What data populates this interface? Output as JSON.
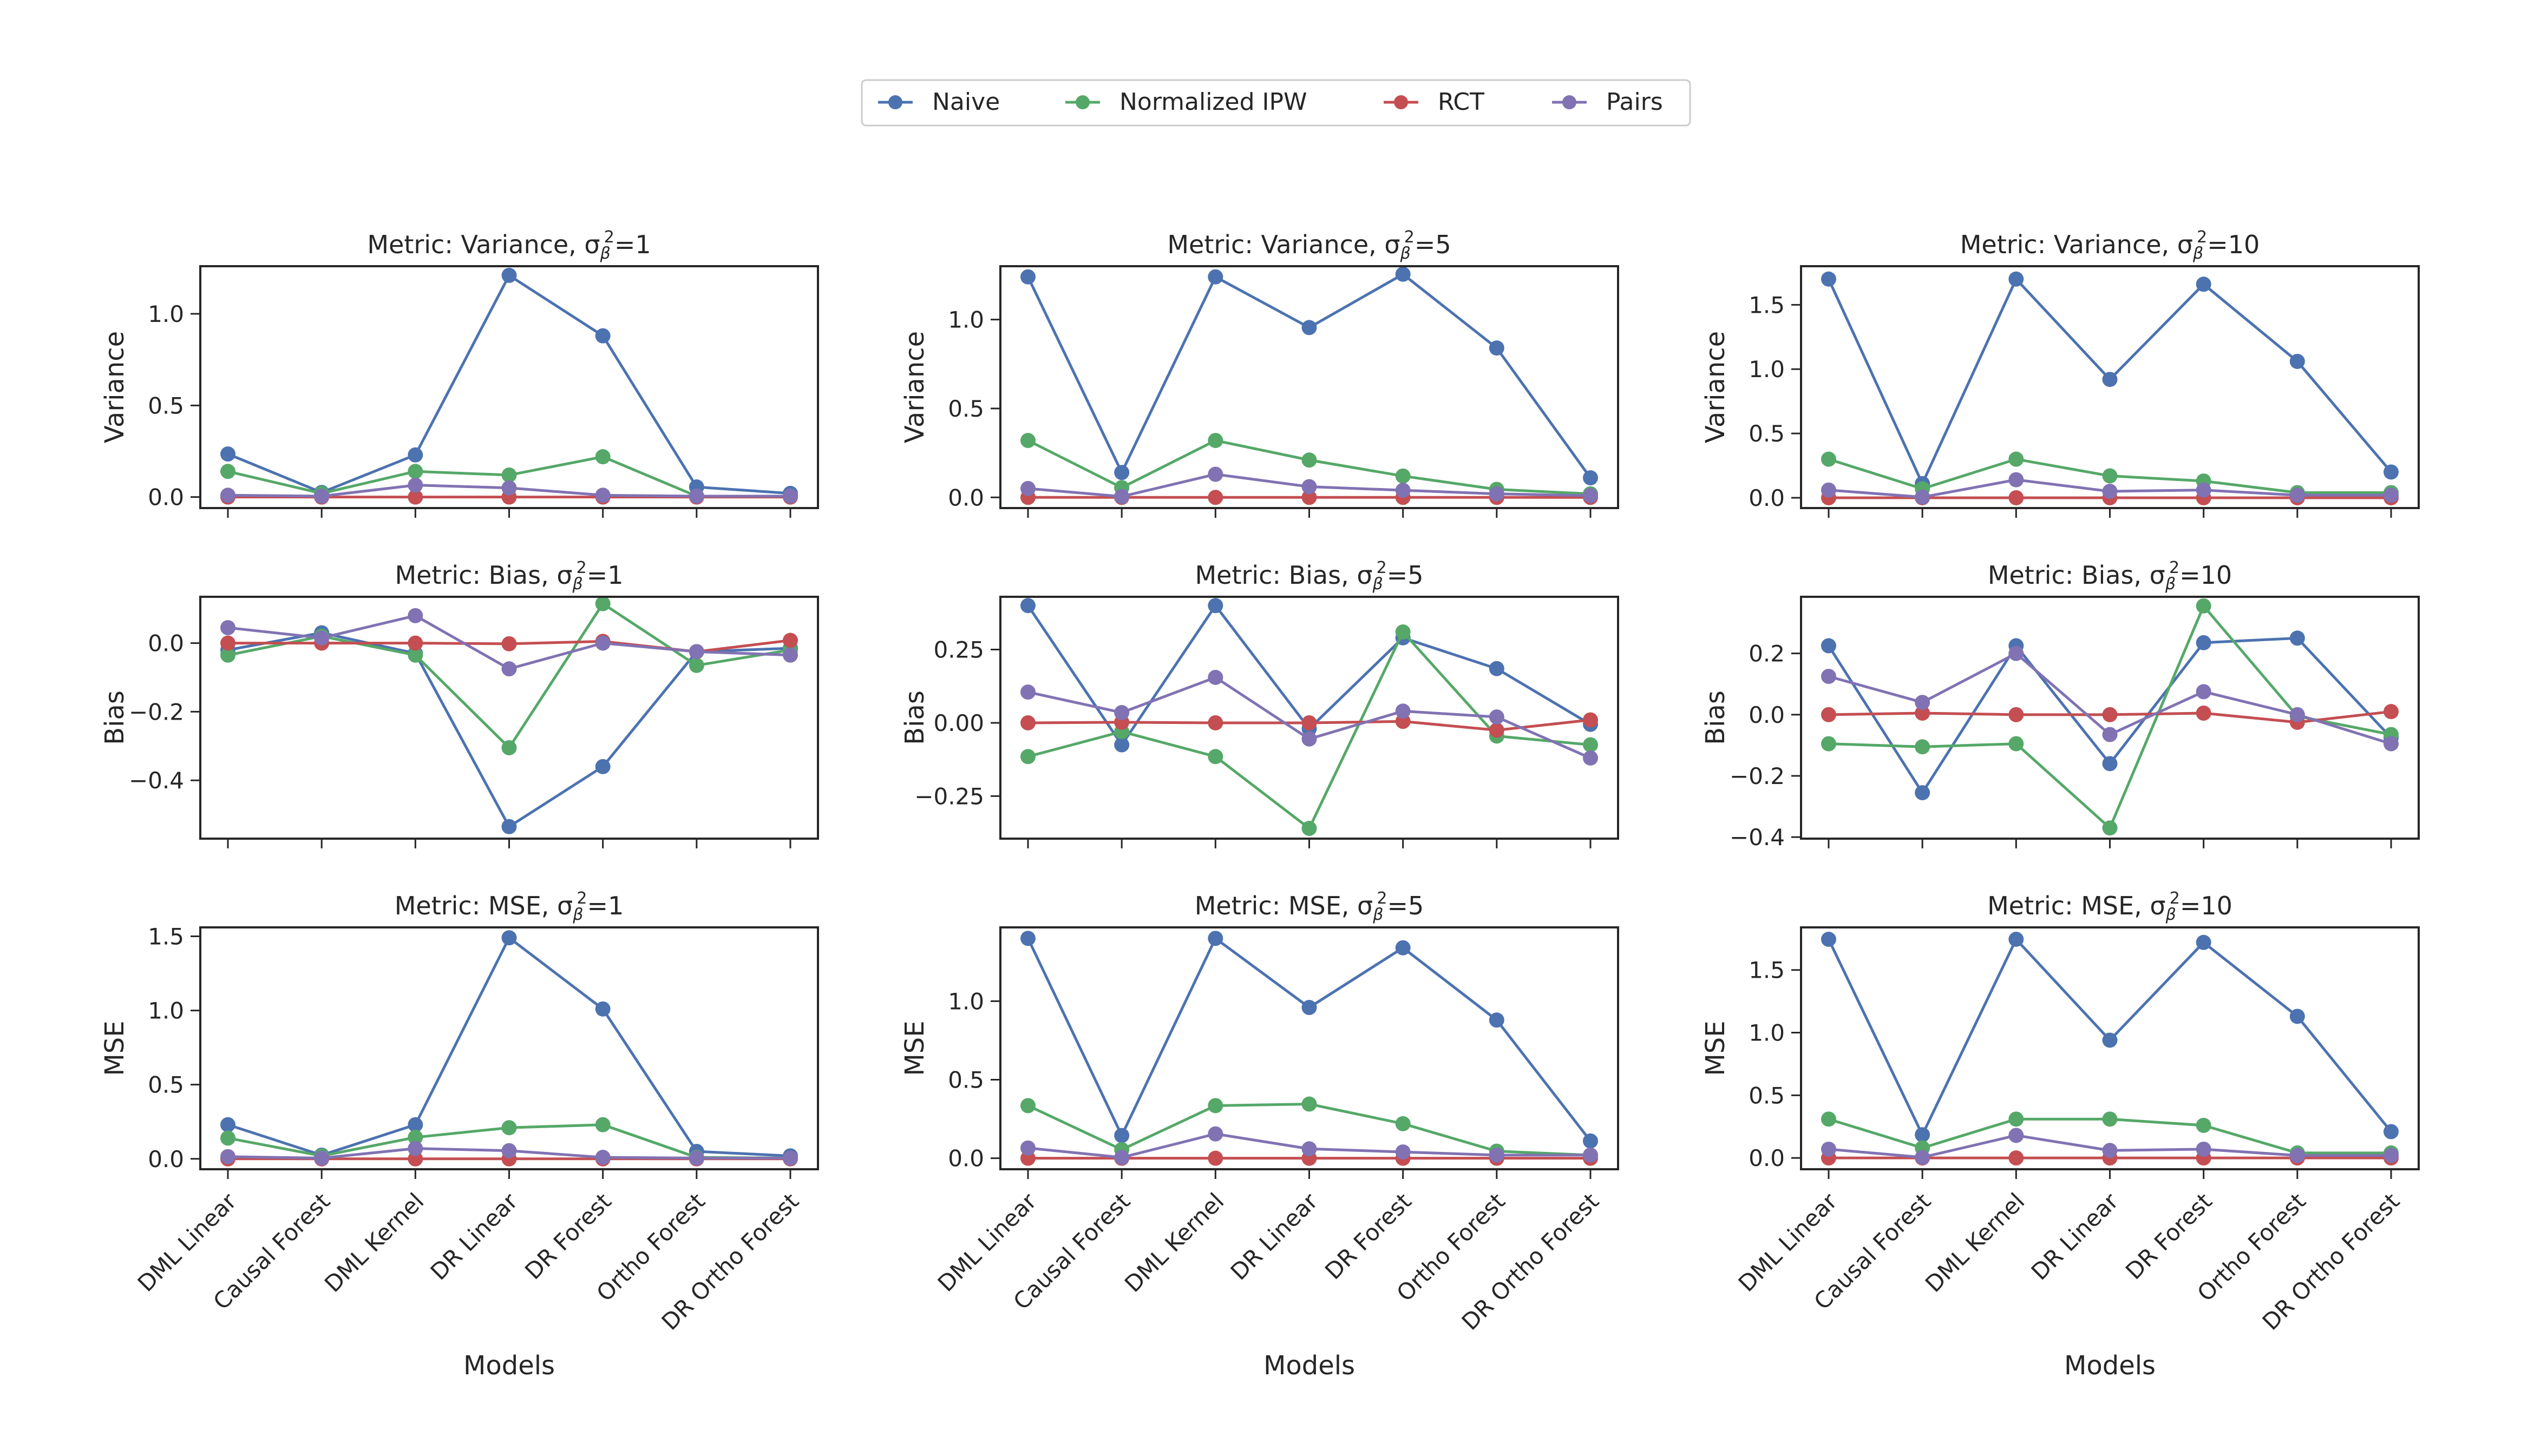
{
  "chart_data": {
    "type": "line",
    "grid": false,
    "legend_placement": "top-center",
    "xlabel": "Models",
    "categories": [
      "DML Linear",
      "Causal Forest",
      "DML Kernel",
      "DR Linear",
      "DR Forest",
      "Ortho Forest",
      "DR Ortho Forest"
    ],
    "series_meta": [
      {
        "name": "Naive",
        "color": "#4c72b0"
      },
      {
        "name": "Normalized IPW",
        "color": "#55a868"
      },
      {
        "name": "RCT",
        "color": "#c44e52"
      },
      {
        "name": "Pairs",
        "color": "#8172b3"
      }
    ],
    "panels": [
      {
        "metric": "Variance",
        "title_prefix": "Metric: Variance, ",
        "sigma_label": "=1",
        "ylabel": "Variance",
        "ylim": [
          -0.06,
          1.26
        ],
        "yticks": [
          0.0,
          0.5,
          1.0
        ],
        "ytick_labels": [
          "0.0",
          "0.5",
          "1.0"
        ],
        "series": [
          {
            "name": "Naive",
            "values": [
              0.235,
              0.025,
              0.23,
              1.21,
              0.88,
              0.055,
              0.02
            ]
          },
          {
            "name": "Normalized IPW",
            "values": [
              0.14,
              0.02,
              0.14,
              0.12,
              0.22,
              0.005,
              0.005
            ]
          },
          {
            "name": "RCT",
            "values": [
              0.0,
              0.0,
              0.0,
              0.0,
              0.0,
              0.0,
              0.0
            ]
          },
          {
            "name": "Pairs",
            "values": [
              0.01,
              0.005,
              0.065,
              0.05,
              0.01,
              0.005,
              0.005
            ]
          }
        ]
      },
      {
        "metric": "Variance",
        "title_prefix": "Metric: Variance, ",
        "sigma_label": "=5",
        "ylabel": "Variance",
        "ylim": [
          -0.06,
          1.3
        ],
        "yticks": [
          0.0,
          0.5,
          1.0
        ],
        "ytick_labels": [
          "0.0",
          "0.5",
          "1.0"
        ],
        "series": [
          {
            "name": "Naive",
            "values": [
              1.24,
              0.14,
              1.24,
              0.955,
              1.255,
              0.84,
              0.11
            ]
          },
          {
            "name": "Normalized IPW",
            "values": [
              0.32,
              0.055,
              0.32,
              0.21,
              0.12,
              0.045,
              0.02
            ]
          },
          {
            "name": "RCT",
            "values": [
              0.0,
              0.0,
              0.0,
              0.0,
              0.0,
              0.0,
              0.0
            ]
          },
          {
            "name": "Pairs",
            "values": [
              0.05,
              0.005,
              0.13,
              0.06,
              0.04,
              0.02,
              0.01
            ]
          }
        ]
      },
      {
        "metric": "Variance",
        "title_prefix": "Metric: Variance, ",
        "sigma_label": "=10",
        "ylabel": "Variance",
        "ylim": [
          -0.08,
          1.8
        ],
        "yticks": [
          0.0,
          0.5,
          1.0,
          1.5
        ],
        "ytick_labels": [
          "0.0",
          "0.5",
          "1.0",
          "1.5"
        ],
        "series": [
          {
            "name": "Naive",
            "values": [
              1.7,
              0.11,
              1.7,
              0.92,
              1.66,
              1.06,
              0.2
            ]
          },
          {
            "name": "Normalized IPW",
            "values": [
              0.3,
              0.07,
              0.3,
              0.17,
              0.13,
              0.04,
              0.04
            ]
          },
          {
            "name": "RCT",
            "values": [
              0.0,
              0.0,
              0.0,
              0.0,
              0.0,
              0.0,
              0.0
            ]
          },
          {
            "name": "Pairs",
            "values": [
              0.06,
              0.005,
              0.14,
              0.05,
              0.06,
              0.02,
              0.02
            ]
          }
        ]
      },
      {
        "metric": "Bias",
        "title_prefix": "Metric: Bias, ",
        "sigma_label": "=1",
        "ylabel": "Bias",
        "ylim": [
          -0.57,
          0.135
        ],
        "yticks": [
          -0.4,
          -0.2,
          0.0
        ],
        "ytick_labels": [
          "−0.4",
          "−0.2",
          "0.0"
        ],
        "series": [
          {
            "name": "Naive",
            "values": [
              -0.02,
              0.03,
              -0.03,
              -0.535,
              -0.36,
              -0.025,
              -0.015
            ]
          },
          {
            "name": "Normalized IPW",
            "values": [
              -0.035,
              0.02,
              -0.035,
              -0.305,
              0.115,
              -0.065,
              -0.02
            ]
          },
          {
            "name": "RCT",
            "values": [
              0.0,
              0.0,
              0.0,
              -0.002,
              0.005,
              -0.025,
              0.008
            ]
          },
          {
            "name": "Pairs",
            "values": [
              0.045,
              0.015,
              0.08,
              -0.075,
              0.0,
              -0.025,
              -0.035
            ]
          }
        ]
      },
      {
        "metric": "Bias",
        "title_prefix": "Metric: Bias, ",
        "sigma_label": "=5",
        "ylabel": "Bias",
        "ylim": [
          -0.395,
          0.43
        ],
        "yticks": [
          -0.25,
          0.0,
          0.25
        ],
        "ytick_labels": [
          "−0.25",
          "0.00",
          "0.25"
        ],
        "series": [
          {
            "name": "Naive",
            "values": [
              0.4,
              -0.075,
              0.4,
              -0.02,
              0.29,
              0.185,
              -0.005
            ]
          },
          {
            "name": "Normalized IPW",
            "values": [
              -0.115,
              -0.03,
              -0.115,
              -0.36,
              0.31,
              -0.045,
              -0.075
            ]
          },
          {
            "name": "RCT",
            "values": [
              0.0,
              0.002,
              0.0,
              0.0,
              0.005,
              -0.025,
              0.01
            ]
          },
          {
            "name": "Pairs",
            "values": [
              0.105,
              0.035,
              0.155,
              -0.055,
              0.04,
              0.02,
              -0.12
            ]
          }
        ]
      },
      {
        "metric": "Bias",
        "title_prefix": "Metric: Bias, ",
        "sigma_label": "=10",
        "ylabel": "Bias",
        "ylim": [
          -0.405,
          0.385
        ],
        "yticks": [
          -0.4,
          -0.2,
          0.0,
          0.2
        ],
        "ytick_labels": [
          "−0.4",
          "−0.2",
          "0.0",
          "0.2"
        ],
        "series": [
          {
            "name": "Naive",
            "values": [
              0.225,
              -0.255,
              0.225,
              -0.16,
              0.235,
              0.25,
              -0.075
            ]
          },
          {
            "name": "Normalized IPW",
            "values": [
              -0.095,
              -0.105,
              -0.095,
              -0.37,
              0.355,
              -0.005,
              -0.065
            ]
          },
          {
            "name": "RCT",
            "values": [
              0.0,
              0.005,
              0.0,
              0.0,
              0.005,
              -0.025,
              0.01
            ]
          },
          {
            "name": "Pairs",
            "values": [
              0.125,
              0.04,
              0.2,
              -0.065,
              0.075,
              0.0,
              -0.095
            ]
          }
        ]
      },
      {
        "metric": "MSE",
        "title_prefix": "Metric: MSE, ",
        "sigma_label": "=1",
        "ylabel": "MSE",
        "ylim": [
          -0.07,
          1.56
        ],
        "yticks": [
          0.0,
          0.5,
          1.0,
          1.5
        ],
        "ytick_labels": [
          "0.0",
          "0.5",
          "1.0",
          "1.5"
        ],
        "series": [
          {
            "name": "Naive",
            "values": [
              0.23,
              0.025,
              0.23,
              1.49,
              1.01,
              0.05,
              0.02
            ]
          },
          {
            "name": "Normalized IPW",
            "values": [
              0.14,
              0.02,
              0.145,
              0.21,
              0.23,
              0.01,
              0.005
            ]
          },
          {
            "name": "RCT",
            "values": [
              0.0,
              0.0,
              0.0,
              0.0,
              0.0,
              0.0,
              0.0
            ]
          },
          {
            "name": "Pairs",
            "values": [
              0.015,
              0.005,
              0.07,
              0.055,
              0.01,
              0.005,
              0.005
            ]
          }
        ]
      },
      {
        "metric": "MSE",
        "title_prefix": "Metric: MSE, ",
        "sigma_label": "=5",
        "ylabel": "MSE",
        "ylim": [
          -0.07,
          1.47
        ],
        "yticks": [
          0.0,
          0.5,
          1.0
        ],
        "ytick_labels": [
          "0.0",
          "0.5",
          "1.0"
        ],
        "series": [
          {
            "name": "Naive",
            "values": [
              1.4,
              0.145,
              1.4,
              0.96,
              1.34,
              0.88,
              0.11
            ]
          },
          {
            "name": "Normalized IPW",
            "values": [
              0.335,
              0.055,
              0.335,
              0.345,
              0.22,
              0.045,
              0.02
            ]
          },
          {
            "name": "RCT",
            "values": [
              0.0,
              0.0,
              0.0,
              0.0,
              0.0,
              0.0,
              0.0
            ]
          },
          {
            "name": "Pairs",
            "values": [
              0.065,
              0.005,
              0.155,
              0.06,
              0.04,
              0.02,
              0.02
            ]
          }
        ]
      },
      {
        "metric": "MSE",
        "title_prefix": "Metric: MSE, ",
        "sigma_label": "=10",
        "ylabel": "MSE",
        "ylim": [
          -0.09,
          1.84
        ],
        "yticks": [
          0.0,
          0.5,
          1.0,
          1.5
        ],
        "ytick_labels": [
          "0.0",
          "0.5",
          "1.0",
          "1.5"
        ],
        "series": [
          {
            "name": "Naive",
            "values": [
              1.745,
              0.185,
              1.745,
              0.94,
              1.72,
              1.13,
              0.21
            ]
          },
          {
            "name": "Normalized IPW",
            "values": [
              0.31,
              0.08,
              0.31,
              0.31,
              0.26,
              0.04,
              0.04
            ]
          },
          {
            "name": "RCT",
            "values": [
              0.0,
              0.0,
              0.0,
              0.0,
              0.0,
              0.0,
              0.0
            ]
          },
          {
            "name": "Pairs",
            "values": [
              0.07,
              0.005,
              0.18,
              0.06,
              0.07,
              0.02,
              0.02
            ]
          }
        ]
      }
    ]
  }
}
